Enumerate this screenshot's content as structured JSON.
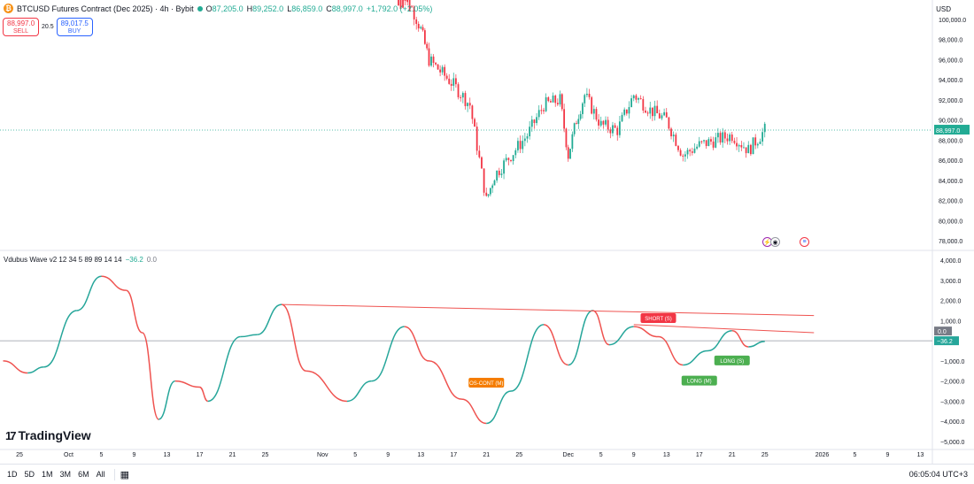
{
  "symbol": {
    "title": "BTCUSD Futures Contract (Dec 2025) · 4h · Bybit",
    "logo_glyph": "₿",
    "ohlc": [
      {
        "label": "O",
        "value": "87,205.0"
      },
      {
        "label": "H",
        "value": "89,252.0"
      },
      {
        "label": "L",
        "value": "86,859.0"
      },
      {
        "label": "C",
        "value": "88,997.0"
      }
    ],
    "change": "+1,792.0 (+2.05%)"
  },
  "trade": {
    "sell_price": "88,997.0",
    "sell_label": "SELL",
    "spread": "20.5",
    "buy_price": "89,017.5",
    "buy_label": "BUY"
  },
  "indicator": {
    "name": "Vdubus Wave v2 12 34 5 89 89 14 14",
    "value1": "−36.2",
    "value2": "0.0"
  },
  "currency": "USD",
  "colors": {
    "up": "#22ab94",
    "down": "#f23645",
    "wave_up": "#26a69a",
    "wave_down": "#ef5350",
    "signal_green": "#4caf50",
    "signal_red": "#f23645",
    "signal_orange": "#f57c00"
  },
  "price_axis": [
    "100,000.0",
    "98,000.0",
    "96,000.0",
    "94,000.0",
    "92,000.0",
    "90,000.0",
    "88,000.0",
    "86,000.0",
    "84,000.0",
    "82,000.0",
    "80,000.0",
    "78,000.0"
  ],
  "price_last": "88,997.0",
  "osc_axis": [
    "4,000.0",
    "3,000.0",
    "2,000.0",
    "1,000.0",
    "−1,000.0",
    "−2,000.0",
    "−3,000.0",
    "−4,000.0",
    "−5,000.0"
  ],
  "osc_last_a": "0.0",
  "osc_last_b": "−36.2",
  "time_axis": [
    "25",
    "Oct",
    "5",
    "9",
    "13",
    "17",
    "21",
    "25",
    "Nov",
    "5",
    "9",
    "13",
    "17",
    "21",
    "25",
    "Dec",
    "5",
    "9",
    "13",
    "17",
    "21",
    "25",
    "2026",
    "5",
    "9",
    "13"
  ],
  "signals": [
    {
      "text": "OS-CONT (M)",
      "color": "orange"
    },
    {
      "text": "SHORT (S)",
      "color": "red"
    },
    {
      "text": "LONG (S)",
      "color": "green"
    },
    {
      "text": "LONG (M)",
      "color": "green"
    }
  ],
  "toolbar": {
    "ranges": [
      "1D",
      "5D",
      "1M",
      "3M",
      "6M",
      "All"
    ],
    "calendar_icon": "calendar-icon",
    "clock": "06:05:04 UTC+3"
  },
  "branding": {
    "text": "TradingView",
    "mark": "17"
  },
  "chart_data": {
    "type": "candlestick",
    "timeframe": "4h",
    "close_path_approx": [
      {
        "t": "Nov 10",
        "c": 105000
      },
      {
        "t": "Nov 13",
        "c": 99000
      },
      {
        "t": "Nov 14",
        "c": 96000
      },
      {
        "t": "Nov 17",
        "c": 93500
      },
      {
        "t": "Nov 19",
        "c": 91500
      },
      {
        "t": "Nov 21",
        "c": 82000
      },
      {
        "t": "Nov 22",
        "c": 84500
      },
      {
        "t": "Nov 24",
        "c": 86500
      },
      {
        "t": "Nov 26",
        "c": 88500
      },
      {
        "t": "Nov 28",
        "c": 91500
      },
      {
        "t": "Nov 30",
        "c": 92000
      },
      {
        "t": "Dec 1",
        "c": 86500
      },
      {
        "t": "Dec 2",
        "c": 90000
      },
      {
        "t": "Dec 3",
        "c": 92500
      },
      {
        "t": "Dec 5",
        "c": 89500
      },
      {
        "t": "Dec 7",
        "c": 89000
      },
      {
        "t": "Dec 9",
        "c": 92500
      },
      {
        "t": "Dec 11",
        "c": 91000
      },
      {
        "t": "Dec 13",
        "c": 90000
      },
      {
        "t": "Dec 15",
        "c": 86500
      },
      {
        "t": "Dec 17",
        "c": 87500
      },
      {
        "t": "Dec 19",
        "c": 88000
      },
      {
        "t": "Dec 21",
        "c": 88500
      },
      {
        "t": "Dec 23",
        "c": 87000
      },
      {
        "t": "Dec 25",
        "c": 88997
      }
    ],
    "last_price": 88997,
    "y_range": [
      77000,
      101500
    ],
    "oscillator": {
      "name": "Vdubus Wave v2",
      "y_range": [
        -5000,
        4000
      ],
      "points": [
        {
          "t": "Sep 23",
          "v": -1000
        },
        {
          "t": "Sep 26",
          "v": -1600
        },
        {
          "t": "Sep 28",
          "v": -1300
        },
        {
          "t": "Oct 2",
          "v": 1500
        },
        {
          "t": "Oct 5",
          "v": 3200
        },
        {
          "t": "Oct 8",
          "v": 2500
        },
        {
          "t": "Oct 10",
          "v": 400
        },
        {
          "t": "Oct 12",
          "v": -3900
        },
        {
          "t": "Oct 14",
          "v": -2000
        },
        {
          "t": "Oct 17",
          "v": -2300
        },
        {
          "t": "Oct 18",
          "v": -3000
        },
        {
          "t": "Oct 22",
          "v": 200
        },
        {
          "t": "Oct 24",
          "v": 300
        },
        {
          "t": "Oct 27",
          "v": 1800
        },
        {
          "t": "Oct 30",
          "v": -1500
        },
        {
          "t": "Nov 4",
          "v": -3000
        },
        {
          "t": "Nov 7",
          "v": -2000
        },
        {
          "t": "Nov 11",
          "v": 700
        },
        {
          "t": "Nov 14",
          "v": -1000
        },
        {
          "t": "Nov 18",
          "v": -2900
        },
        {
          "t": "Nov 21",
          "v": -4100
        },
        {
          "t": "Nov 24",
          "v": -2500
        },
        {
          "t": "Nov 28",
          "v": 800
        },
        {
          "t": "Dec 1",
          "v": -1200
        },
        {
          "t": "Dec 4",
          "v": 1500
        },
        {
          "t": "Dec 6",
          "v": -200
        },
        {
          "t": "Dec 9",
          "v": 700
        },
        {
          "t": "Dec 12",
          "v": 200
        },
        {
          "t": "Dec 15",
          "v": -1200
        },
        {
          "t": "Dec 18",
          "v": -500
        },
        {
          "t": "Dec 21",
          "v": 500
        },
        {
          "t": "Dec 23",
          "v": -300
        },
        {
          "t": "Dec 25",
          "v": -36
        }
      ],
      "trendlines": [
        {
          "from": {
            "t": "Oct 27",
            "v": 1800
          },
          "to": {
            "t": "Dec 31",
            "v": 1250
          }
        },
        {
          "from": {
            "t": "Dec 9",
            "v": 800
          },
          "to": {
            "t": "Dec 31",
            "v": 400
          }
        }
      ]
    }
  }
}
